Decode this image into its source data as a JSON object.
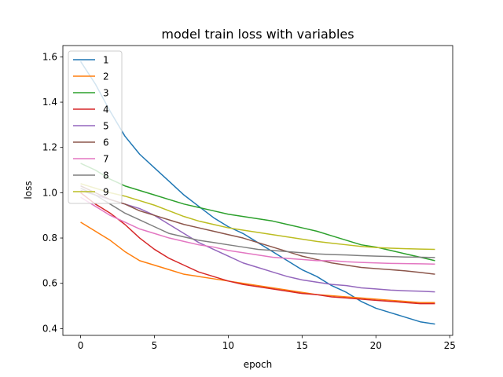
{
  "chart_data": {
    "type": "line",
    "title": "model train loss with variables",
    "xlabel": "epoch",
    "ylabel": "loss",
    "xlim": [
      -1.2,
      25.2
    ],
    "ylim": [
      0.37,
      1.65
    ],
    "xticks": [
      0,
      5,
      10,
      15,
      20,
      25
    ],
    "yticks": [
      0.4,
      0.6,
      0.8,
      1.0,
      1.2,
      1.4,
      1.6
    ],
    "ytick_labels": [
      "0.4",
      "0.6",
      "0.8",
      "1.0",
      "1.2",
      "1.4",
      "1.6"
    ],
    "grid": false,
    "legend_position": "top-left",
    "x": [
      0,
      1,
      2,
      3,
      4,
      5,
      6,
      7,
      8,
      9,
      10,
      11,
      12,
      13,
      14,
      15,
      16,
      17,
      18,
      19,
      20,
      21,
      22,
      23,
      24
    ],
    "series": [
      {
        "name": "1",
        "color": "#1f77b4",
        "values": [
          1.58,
          1.48,
          1.36,
          1.25,
          1.17,
          1.11,
          1.05,
          0.99,
          0.94,
          0.89,
          0.85,
          0.82,
          0.78,
          0.74,
          0.7,
          0.66,
          0.63,
          0.59,
          0.56,
          0.52,
          0.49,
          0.47,
          0.45,
          0.43,
          0.42
        ]
      },
      {
        "name": "2",
        "color": "#ff7f0e",
        "values": [
          0.87,
          0.83,
          0.79,
          0.74,
          0.7,
          0.68,
          0.66,
          0.64,
          0.63,
          0.62,
          0.61,
          0.6,
          0.59,
          0.58,
          0.57,
          0.56,
          0.55,
          0.545,
          0.54,
          0.535,
          0.53,
          0.525,
          0.52,
          0.515,
          0.515
        ]
      },
      {
        "name": "3",
        "color": "#2ca02c",
        "values": [
          1.13,
          1.1,
          1.06,
          1.03,
          1.01,
          0.99,
          0.97,
          0.95,
          0.935,
          0.92,
          0.905,
          0.895,
          0.885,
          0.875,
          0.86,
          0.845,
          0.83,
          0.81,
          0.79,
          0.77,
          0.76,
          0.745,
          0.73,
          0.715,
          0.7
        ]
      },
      {
        "name": "4",
        "color": "#d62728",
        "values": [
          1.0,
          0.95,
          0.91,
          0.86,
          0.8,
          0.75,
          0.71,
          0.68,
          0.65,
          0.63,
          0.61,
          0.595,
          0.585,
          0.575,
          0.565,
          0.555,
          0.55,
          0.54,
          0.535,
          0.53,
          0.525,
          0.52,
          0.515,
          0.51,
          0.51
        ]
      },
      {
        "name": "5",
        "color": "#9467bd",
        "values": [
          1.01,
          0.99,
          0.97,
          0.95,
          0.93,
          0.9,
          0.86,
          0.82,
          0.78,
          0.75,
          0.72,
          0.69,
          0.67,
          0.65,
          0.63,
          0.615,
          0.605,
          0.595,
          0.59,
          0.58,
          0.575,
          0.57,
          0.567,
          0.565,
          0.562
        ]
      },
      {
        "name": "6",
        "color": "#8c564b",
        "values": [
          1.03,
          1.0,
          0.97,
          0.95,
          0.92,
          0.9,
          0.88,
          0.86,
          0.845,
          0.83,
          0.815,
          0.8,
          0.78,
          0.76,
          0.74,
          0.72,
          0.705,
          0.69,
          0.68,
          0.67,
          0.665,
          0.66,
          0.655,
          0.648,
          0.64
        ]
      },
      {
        "name": "7",
        "color": "#e377c2",
        "values": [
          0.98,
          0.94,
          0.9,
          0.87,
          0.84,
          0.82,
          0.8,
          0.785,
          0.77,
          0.76,
          0.745,
          0.735,
          0.725,
          0.715,
          0.71,
          0.705,
          0.7,
          0.7,
          0.695,
          0.692,
          0.69,
          0.688,
          0.687,
          0.686,
          0.685
        ]
      },
      {
        "name": "8",
        "color": "#7f7f7f",
        "values": [
          1.02,
          0.99,
          0.95,
          0.91,
          0.88,
          0.85,
          0.82,
          0.805,
          0.79,
          0.78,
          0.77,
          0.76,
          0.75,
          0.745,
          0.74,
          0.735,
          0.73,
          0.727,
          0.725,
          0.722,
          0.72,
          0.718,
          0.716,
          0.715,
          0.714
        ]
      },
      {
        "name": "9",
        "color": "#bcbd22",
        "values": [
          1.04,
          1.02,
          1.0,
          0.985,
          0.965,
          0.945,
          0.92,
          0.895,
          0.875,
          0.86,
          0.845,
          0.835,
          0.825,
          0.815,
          0.805,
          0.795,
          0.785,
          0.777,
          0.77,
          0.763,
          0.758,
          0.755,
          0.753,
          0.751,
          0.75
        ]
      }
    ]
  }
}
